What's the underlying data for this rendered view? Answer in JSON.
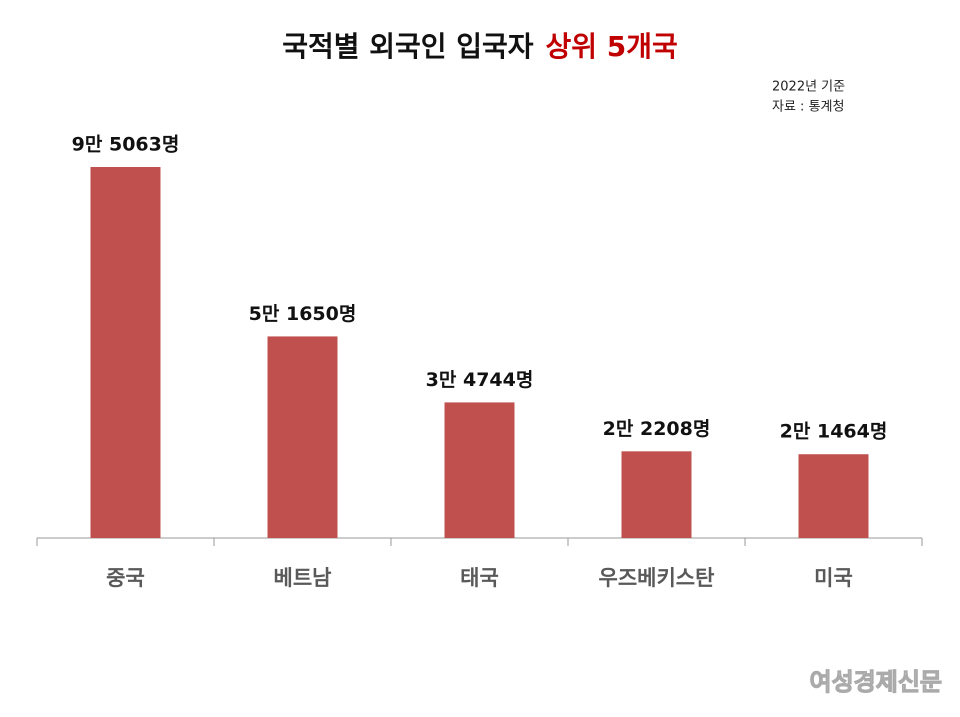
{
  "chart_data": {
    "type": "bar",
    "title": "국적별 외국인 입국자",
    "title_highlight": "상위 5개국",
    "notes": [
      "2022년 기준",
      "자료 : 통계청"
    ],
    "categories": [
      "중국",
      "베트남",
      "태국",
      "우즈베키스탄",
      "미국"
    ],
    "values": [
      95063,
      51650,
      34744,
      22208,
      21464
    ],
    "value_labels": [
      "9만 5063명",
      "5만 1650명",
      "3만 4744명",
      "2만 2208명",
      "2만 1464명"
    ],
    "color": "#c0504d",
    "watermark": "여성경제신문"
  }
}
